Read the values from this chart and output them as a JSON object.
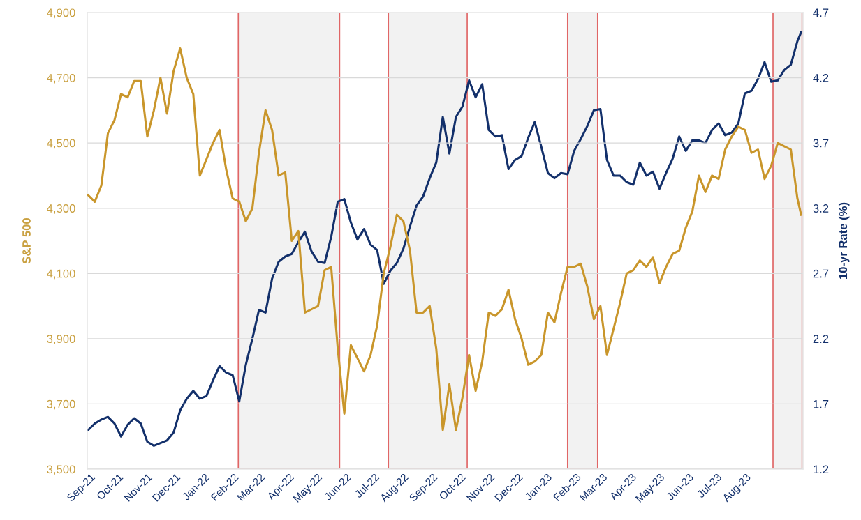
{
  "chart_data": {
    "type": "line",
    "xlabel": null,
    "ylabel": "S&P 500",
    "y2label": "10-yr Rate (%)",
    "x": [
      "2021-08-30",
      "2021-09-06",
      "2021-09-13",
      "2021-09-20",
      "2021-09-27",
      "2021-10-04",
      "2021-10-11",
      "2021-10-18",
      "2021-10-25",
      "2021-11-01",
      "2021-11-08",
      "2021-11-15",
      "2021-11-22",
      "2021-11-29",
      "2021-12-06",
      "2021-12-13",
      "2021-12-20",
      "2021-12-27",
      "2022-01-03",
      "2022-01-10",
      "2022-01-17",
      "2022-01-24",
      "2022-01-31",
      "2022-02-07",
      "2022-02-14",
      "2022-02-21",
      "2022-02-28",
      "2022-03-07",
      "2022-03-14",
      "2022-03-21",
      "2022-03-28",
      "2022-04-04",
      "2022-04-11",
      "2022-04-18",
      "2022-04-25",
      "2022-05-02",
      "2022-05-09",
      "2022-05-16",
      "2022-05-23",
      "2022-05-30",
      "2022-06-06",
      "2022-06-13",
      "2022-06-20",
      "2022-06-27",
      "2022-07-04",
      "2022-07-11",
      "2022-07-18",
      "2022-07-25",
      "2022-08-01",
      "2022-08-08",
      "2022-08-15",
      "2022-08-22",
      "2022-08-29",
      "2022-09-05",
      "2022-09-12",
      "2022-09-19",
      "2022-09-26",
      "2022-10-03",
      "2022-10-10",
      "2022-10-17",
      "2022-10-24",
      "2022-10-31",
      "2022-11-07",
      "2022-11-14",
      "2022-11-21",
      "2022-11-28",
      "2022-12-05",
      "2022-12-12",
      "2022-12-19",
      "2022-12-26",
      "2023-01-02",
      "2023-01-09",
      "2023-01-16",
      "2023-01-23",
      "2023-01-30",
      "2023-02-06",
      "2023-02-13",
      "2023-02-20",
      "2023-02-27",
      "2023-03-06",
      "2023-03-13",
      "2023-03-20",
      "2023-03-27",
      "2023-04-03",
      "2023-04-10",
      "2023-04-17",
      "2023-04-24",
      "2023-05-01",
      "2023-05-08",
      "2023-05-15",
      "2023-05-22",
      "2023-05-29",
      "2023-06-05",
      "2023-06-12",
      "2023-06-19",
      "2023-06-26",
      "2023-07-03",
      "2023-07-10",
      "2023-07-17",
      "2023-07-24",
      "2023-07-31",
      "2023-08-07",
      "2023-08-14",
      "2023-08-21",
      "2023-08-28",
      "2023-09-04",
      "2023-09-11",
      "2023-09-18",
      "2023-09-25",
      "2023-09-29"
    ],
    "series": [
      {
        "color": "#c9962b",
        "axis": "y",
        "values": [
          4340,
          4320,
          4370,
          4530,
          4570,
          4650,
          4640,
          4690,
          4690,
          4520,
          4600,
          4700,
          4590,
          4720,
          4790,
          4700,
          4650,
          4400,
          4450,
          4500,
          4540,
          4420,
          4330,
          4320,
          4260,
          4300,
          4470,
          4600,
          4540,
          4400,
          4410,
          4200,
          4230,
          3980,
          3990,
          4000,
          4110,
          4120,
          3870,
          3670,
          3880,
          3840,
          3800,
          3850,
          3940,
          4100,
          4180,
          4280,
          4260,
          4170,
          3980,
          3980,
          4000,
          3870,
          3620,
          3760,
          3620,
          3720,
          3850,
          3740,
          3830,
          3980,
          3970,
          3990,
          4050,
          3960,
          3900,
          3820,
          3830,
          3850,
          3980,
          3950,
          4040,
          4120,
          4120,
          4130,
          4060,
          3960,
          4000,
          3850,
          3930,
          4010,
          4100,
          4110,
          4140,
          4120,
          4150,
          4070,
          4120,
          4160,
          4170,
          4240,
          4290,
          4400,
          4350,
          4400,
          4390,
          4480,
          4520,
          4550,
          4540,
          4470,
          4480,
          4390,
          4430,
          4500,
          4490,
          4480,
          4330,
          4280
        ]
      },
      {
        "color": "#13306b",
        "axis": "y2",
        "values": [
          1.5,
          1.55,
          1.58,
          1.6,
          1.55,
          1.45,
          1.54,
          1.59,
          1.55,
          1.41,
          1.38,
          1.4,
          1.42,
          1.48,
          1.65,
          1.74,
          1.8,
          1.74,
          1.76,
          1.88,
          1.99,
          1.94,
          1.92,
          1.72,
          2.0,
          2.2,
          2.42,
          2.4,
          2.66,
          2.79,
          2.83,
          2.85,
          2.94,
          3.02,
          2.87,
          2.79,
          2.78,
          2.98,
          3.25,
          3.27,
          3.09,
          2.96,
          3.04,
          2.92,
          2.88,
          2.62,
          2.72,
          2.78,
          2.89,
          3.06,
          3.22,
          3.29,
          3.43,
          3.55,
          3.9,
          3.62,
          3.9,
          3.98,
          4.18,
          4.05,
          4.15,
          3.8,
          3.75,
          3.76,
          3.5,
          3.57,
          3.6,
          3.74,
          3.86,
          3.67,
          3.47,
          3.43,
          3.47,
          3.46,
          3.64,
          3.73,
          3.83,
          3.95,
          3.96,
          3.57,
          3.45,
          3.45,
          3.4,
          3.38,
          3.55,
          3.45,
          3.48,
          3.35,
          3.47,
          3.58,
          3.75,
          3.64,
          3.72,
          3.72,
          3.7,
          3.8,
          3.85,
          3.76,
          3.78,
          3.85,
          4.08,
          4.1,
          4.19,
          4.32,
          4.17,
          4.18,
          4.26,
          4.3,
          4.48,
          4.55
        ]
      }
    ],
    "xlim": [
      "2021-08-29",
      "2023-10-01"
    ],
    "xticks": [
      {
        "value": "2021-09-01",
        "label": "Sep-21"
      },
      {
        "value": "2021-10-01",
        "label": "Oct-21"
      },
      {
        "value": "2021-11-01",
        "label": "Nov-21"
      },
      {
        "value": "2021-12-01",
        "label": "Dec-21"
      },
      {
        "value": "2022-01-01",
        "label": "Jan-22"
      },
      {
        "value": "2022-02-01",
        "label": "Feb-22"
      },
      {
        "value": "2022-03-01",
        "label": "Mar-22"
      },
      {
        "value": "2022-04-01",
        "label": "Apr-22"
      },
      {
        "value": "2022-05-01",
        "label": "May-22"
      },
      {
        "value": "2022-06-01",
        "label": "Jun-22"
      },
      {
        "value": "2022-07-01",
        "label": "Jul-22"
      },
      {
        "value": "2022-08-01",
        "label": "Aug-22"
      },
      {
        "value": "2022-09-01",
        "label": "Sep-22"
      },
      {
        "value": "2022-10-01",
        "label": "Oct-22"
      },
      {
        "value": "2022-11-01",
        "label": "Nov-22"
      },
      {
        "value": "2022-12-01",
        "label": "Dec-22"
      },
      {
        "value": "2023-01-01",
        "label": "Jan-23"
      },
      {
        "value": "2023-02-01",
        "label": "Feb-23"
      },
      {
        "value": "2023-03-01",
        "label": "Mar-23"
      },
      {
        "value": "2023-04-01",
        "label": "Apr-23"
      },
      {
        "value": "2023-05-01",
        "label": "May-23"
      },
      {
        "value": "2023-06-01",
        "label": "Jun-23"
      },
      {
        "value": "2023-07-01",
        "label": "Jul-23"
      },
      {
        "value": "2023-08-01",
        "label": "Aug-23"
      }
    ],
    "ylim": [
      3500,
      4900
    ],
    "yticks": [
      {
        "value": 3500,
        "label": "3,500"
      },
      {
        "value": 3700,
        "label": "3,700"
      },
      {
        "value": 3900,
        "label": "3,900"
      },
      {
        "value": 4100,
        "label": "4,100"
      },
      {
        "value": 4300,
        "label": "4,300"
      },
      {
        "value": 4500,
        "label": "4,500"
      },
      {
        "value": 4700,
        "label": "4,700"
      },
      {
        "value": 4900,
        "label": "4,900"
      }
    ],
    "y2lim": [
      1.2,
      4.7
    ],
    "y2ticks": [
      {
        "value": 1.2,
        "label": "1.2"
      },
      {
        "value": 1.7,
        "label": "1.7"
      },
      {
        "value": 2.2,
        "label": "2.2"
      },
      {
        "value": 2.7,
        "label": "2.7"
      },
      {
        "value": 3.2,
        "label": "3.2"
      },
      {
        "value": 3.7,
        "label": "3.7"
      },
      {
        "value": 4.2,
        "label": "4.2"
      },
      {
        "value": 4.7,
        "label": "4.7"
      }
    ],
    "bands": [
      {
        "axis": "x",
        "from": "2022-02-06",
        "to": "2022-05-25",
        "color": "#f2f2f2"
      },
      {
        "axis": "x",
        "from": "2022-07-16",
        "to": "2022-10-08",
        "color": "#f2f2f2"
      },
      {
        "axis": "x",
        "from": "2023-01-23",
        "to": "2023-02-24",
        "color": "#f2f2f2"
      },
      {
        "axis": "x",
        "from": "2023-08-30",
        "to": "2023-09-30",
        "color": "#f2f2f2"
      }
    ],
    "grid": "y",
    "legend": false,
    "marker": "none",
    "line_style": "solid"
  }
}
